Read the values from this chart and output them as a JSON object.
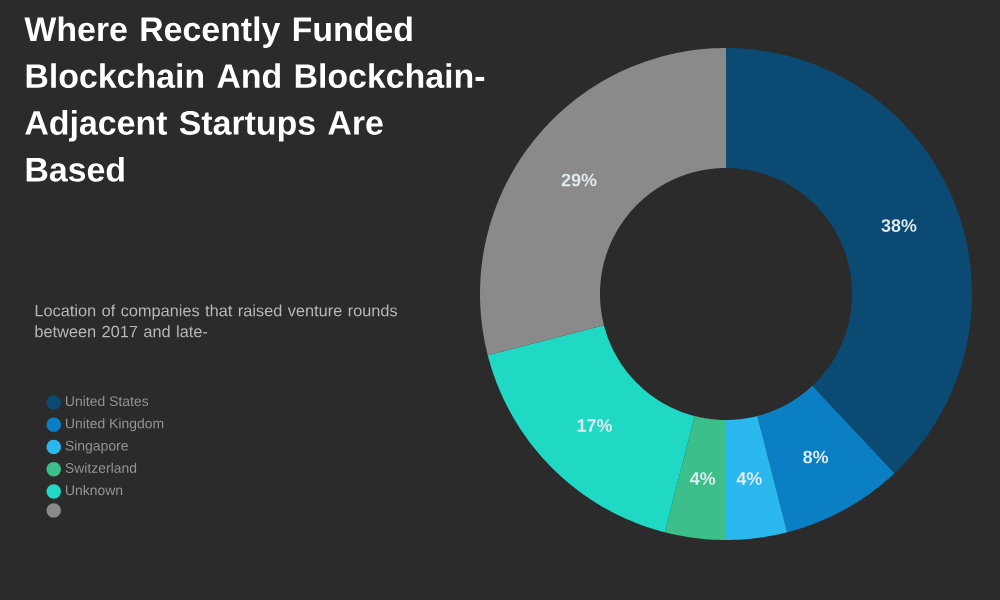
{
  "chart_data": {
    "type": "donut",
    "title": "Where Recently Funded Blockchain And Blockchain-Adjacent Startups Are Based",
    "subtitle": "Location of companies that raised venture rounds between 2017 and late-",
    "categories": [
      "United States",
      "United Kingdom",
      "Singapore",
      "Switzerland",
      "Unknown",
      null
    ],
    "values": [
      38,
      8,
      4,
      4,
      17,
      29
    ],
    "value_labels": [
      "38%",
      "8%",
      "4%",
      "4%",
      "17%",
      "29%"
    ],
    "colors": [
      "#0a4a73",
      "#0b7fc4",
      "#2bb8ef",
      "#3cbf8a",
      "#1fd9c4",
      "#8a8a8a"
    ],
    "legend": "left"
  }
}
